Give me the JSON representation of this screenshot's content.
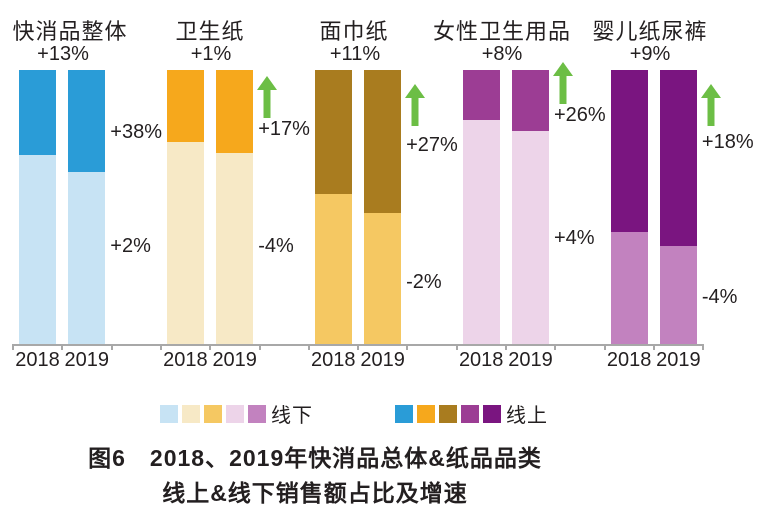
{
  "colors": {
    "text": "#231F20",
    "axis": "#A8A8A8",
    "arrow_green": "#6CBE45",
    "background": "#FFFFFF"
  },
  "chart_data": {
    "type": "bar",
    "stacked": true,
    "description": "2018 vs 2019 stacked bars: share of sales value split between offline (bottom, light color) and online (top, dark color) for FMCG overall and four paper categories, with growth-rate labels.",
    "years": [
      "2018",
      "2019"
    ],
    "axis": {
      "baseline_shown": true,
      "value_axis_shown": false,
      "bar_full_height_pct": 100
    },
    "legend": {
      "offline_label": "线下",
      "online_label": "线上",
      "position": "bottom"
    },
    "groups": [
      {
        "name": "快消品整体",
        "total_growth": "+13%",
        "online_growth": "+38%",
        "offline_growth": "+2%",
        "online_share_pct": [
          31,
          37
        ],
        "offline_share_pct": [
          69,
          63
        ],
        "color_online": "#2A9CD7",
        "color_offline": "#C7E3F4",
        "arrow_icon": false
      },
      {
        "name": "卫生纸",
        "total_growth": "+1%",
        "online_growth": "+17%",
        "offline_growth": "-4%",
        "online_share_pct": [
          26,
          30
        ],
        "offline_share_pct": [
          74,
          70
        ],
        "color_online": "#F6A81C",
        "color_offline": "#F7E9C6",
        "arrow_icon": true
      },
      {
        "name": "面巾纸",
        "total_growth": "+11%",
        "online_growth": "+27%",
        "offline_growth": "-2%",
        "online_share_pct": [
          45,
          52
        ],
        "offline_share_pct": [
          55,
          48
        ],
        "color_online": "#A97C1F",
        "color_offline": "#F5C862",
        "arrow_icon": true
      },
      {
        "name": "女性卫生用品",
        "total_growth": "+8%",
        "online_growth": "+26%",
        "offline_growth": "+4%",
        "online_share_pct": [
          18,
          22
        ],
        "offline_share_pct": [
          82,
          78
        ],
        "color_online": "#9C3D94",
        "color_offline": "#EDD4E9",
        "arrow_icon": true
      },
      {
        "name": "婴儿纸尿裤",
        "total_growth": "+9%",
        "online_growth": "+18%",
        "offline_growth": "-4%",
        "online_share_pct": [
          59,
          64
        ],
        "offline_share_pct": [
          41,
          36
        ],
        "color_online": "#7A1580",
        "color_offline": "#C282BF",
        "arrow_icon": true
      }
    ]
  },
  "caption": {
    "line1": "图6　2018、2019年快消品总体&纸品品类",
    "line2": "线上&线下销售额占比及增速"
  }
}
